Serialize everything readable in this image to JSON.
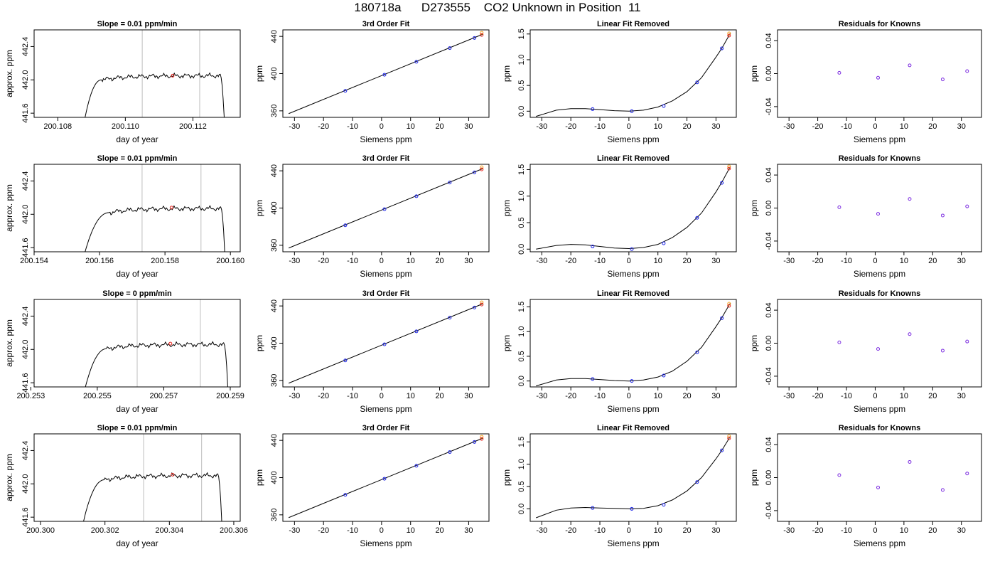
{
  "page_title": "180718a      D273555    CO2 Unknown in Position  11",
  "chart_data": [
    {
      "type": "line",
      "title": "Slope =  0.01  ppm/min",
      "xlabel": "day of year",
      "ylabel": "approx. ppm",
      "xlim": [
        200.1073,
        200.1134
      ],
      "ylim": [
        441.55,
        442.6
      ],
      "xticks": [
        200.108,
        200.11,
        200.112
      ],
      "xtick_labels": [
        "200.108",
        "200.110",
        "200.112"
      ],
      "yticks": [
        441.6,
        442.0,
        442.4
      ],
      "ytick_labels": [
        "441.6",
        "442.0",
        "442.4"
      ],
      "vlines": [
        200.1105,
        200.1122
      ],
      "trace": {
        "t_start": 200.1087,
        "t_rise_end": 200.1093,
        "t_plateau_end": 200.1128,
        "t_end": 200.11295,
        "level": 442.05,
        "low": 441.3
      },
      "marker": {
        "x": 200.1114,
        "y": 442.05
      }
    },
    {
      "type": "scatter",
      "title": "3rd Order Fit",
      "xlabel": "Siemens ppm",
      "ylabel": "ppm",
      "xlim": [
        -34,
        37
      ],
      "ylim": [
        353,
        447
      ],
      "xticks": [
        -30,
        -20,
        -10,
        0,
        10,
        20,
        30
      ],
      "yticks": [
        360,
        400,
        440
      ],
      "points": [
        {
          "x": -12.5,
          "y": 381.5
        },
        {
          "x": 1,
          "y": 398.8
        },
        {
          "x": 12,
          "y": 412.7
        },
        {
          "x": 23.5,
          "y": 427.4
        },
        {
          "x": 32,
          "y": 438.3
        }
      ],
      "unknown": {
        "x": 34.5,
        "y": 441.6
      },
      "fit_line": {
        "x": [
          -32,
          35
        ],
        "y": [
          357,
          442.5
        ]
      }
    },
    {
      "type": "scatter",
      "title": "Linear Fit Removed",
      "xlabel": "Siemens ppm",
      "ylabel": "ppm",
      "xlim": [
        -34,
        37
      ],
      "ylim": [
        -0.12,
        1.58
      ],
      "xticks": [
        -30,
        -20,
        -10,
        0,
        10,
        20,
        30
      ],
      "yticks": [
        0,
        0.5,
        1,
        1.5
      ],
      "ytick_labels": [
        "0.0",
        "0.5",
        "1.0",
        "1.5"
      ],
      "points": [
        {
          "x": -12.5,
          "y": 0.04
        },
        {
          "x": 1,
          "y": 0.0
        },
        {
          "x": 12,
          "y": 0.1
        },
        {
          "x": 23.5,
          "y": 0.56
        },
        {
          "x": 32,
          "y": 1.22
        }
      ],
      "unknown": {
        "x": 34.5,
        "y": 1.47
      },
      "curve": {
        "x": [
          -32,
          -25,
          -20,
          -15,
          -10,
          -5,
          0,
          5,
          10,
          15,
          20,
          25,
          30,
          32,
          34,
          35
        ],
        "y": [
          -0.1,
          0.02,
          0.05,
          0.05,
          0.03,
          0.01,
          0.0,
          0.02,
          0.08,
          0.2,
          0.38,
          0.65,
          1.05,
          1.22,
          1.42,
          1.52
        ]
      }
    },
    {
      "type": "scatter",
      "title": "Residuals for Knowns",
      "xlabel": "Siemens ppm",
      "ylabel": "ppm",
      "xlim": [
        -34,
        37
      ],
      "ylim": [
        -0.053,
        0.053
      ],
      "xticks": [
        -30,
        -20,
        -10,
        0,
        10,
        20,
        30
      ],
      "yticks": [
        -0.04,
        0,
        0.04
      ],
      "ytick_labels": [
        "-0.04",
        "0.00",
        "0.04"
      ],
      "points": [
        {
          "x": -12.5,
          "y": 0.001
        },
        {
          "x": 1,
          "y": -0.005
        },
        {
          "x": 12,
          "y": 0.01
        },
        {
          "x": 23.5,
          "y": -0.007
        },
        {
          "x": 32,
          "y": 0.003
        }
      ]
    },
    {
      "type": "line",
      "title": "Slope =  0.01  ppm/min",
      "xlabel": "day of year",
      "ylabel": "approx. ppm",
      "xlim": [
        200.154,
        200.1603
      ],
      "ylim": [
        441.55,
        442.6
      ],
      "xticks": [
        200.154,
        200.156,
        200.158,
        200.16
      ],
      "xtick_labels": [
        "200.154",
        "200.156",
        "200.158",
        "200.160"
      ],
      "yticks": [
        441.6,
        442.0,
        442.4
      ],
      "ytick_labels": [
        "441.6",
        "442.0",
        "442.4"
      ],
      "vlines": [
        200.1573,
        200.1591
      ],
      "trace": {
        "t_start": 200.1554,
        "t_rise_end": 200.1563,
        "t_plateau_end": 200.1597,
        "t_end": 200.15985,
        "level": 442.07,
        "low": 441.3
      },
      "marker": {
        "x": 200.1582,
        "y": 442.08
      }
    },
    {
      "type": "scatter",
      "title": "3rd Order Fit",
      "xlabel": "Siemens ppm",
      "ylabel": "ppm",
      "xlim": [
        -34,
        37
      ],
      "ylim": [
        353,
        447
      ],
      "xticks": [
        -30,
        -20,
        -10,
        0,
        10,
        20,
        30
      ],
      "yticks": [
        360,
        400,
        440
      ],
      "points": [
        {
          "x": -12.5,
          "y": 381.5
        },
        {
          "x": 1,
          "y": 398.8
        },
        {
          "x": 12,
          "y": 412.7
        },
        {
          "x": 23.5,
          "y": 427.4
        },
        {
          "x": 32,
          "y": 438.3
        }
      ],
      "unknown": {
        "x": 34.5,
        "y": 441.6
      },
      "fit_line": {
        "x": [
          -32,
          35
        ],
        "y": [
          357,
          442.5
        ]
      }
    },
    {
      "type": "scatter",
      "title": "Linear Fit Removed",
      "xlabel": "Siemens ppm",
      "ylabel": "ppm",
      "xlim": [
        -34,
        37
      ],
      "ylim": [
        -0.05,
        1.6
      ],
      "xticks": [
        -30,
        -20,
        -10,
        0,
        10,
        20,
        30
      ],
      "yticks": [
        0,
        0.5,
        1,
        1.5
      ],
      "ytick_labels": [
        "0.0",
        "0.5",
        "1.0",
        "1.5"
      ],
      "points": [
        {
          "x": -12.5,
          "y": 0.05
        },
        {
          "x": 1,
          "y": 0.0
        },
        {
          "x": 12,
          "y": 0.11
        },
        {
          "x": 23.5,
          "y": 0.59
        },
        {
          "x": 32,
          "y": 1.25
        }
      ],
      "unknown": {
        "x": 34.5,
        "y": 1.52
      },
      "curve": {
        "x": [
          -32,
          -25,
          -20,
          -15,
          -10,
          -5,
          0,
          5,
          10,
          15,
          20,
          25,
          30,
          32,
          34,
          35
        ],
        "y": [
          0.0,
          0.07,
          0.09,
          0.08,
          0.05,
          0.02,
          0.01,
          0.03,
          0.09,
          0.22,
          0.41,
          0.68,
          1.08,
          1.26,
          1.46,
          1.56
        ]
      }
    },
    {
      "type": "scatter",
      "title": "Residuals for Knowns",
      "xlabel": "Siemens ppm",
      "ylabel": "ppm",
      "xlim": [
        -34,
        37
      ],
      "ylim": [
        -0.053,
        0.053
      ],
      "xticks": [
        -30,
        -20,
        -10,
        0,
        10,
        20,
        30
      ],
      "yticks": [
        -0.04,
        0,
        0.04
      ],
      "ytick_labels": [
        "-0.04",
        "0.00",
        "0.04"
      ],
      "points": [
        {
          "x": -12.5,
          "y": 0.001
        },
        {
          "x": 1,
          "y": -0.007
        },
        {
          "x": 12,
          "y": 0.011
        },
        {
          "x": 23.5,
          "y": -0.009
        },
        {
          "x": 32,
          "y": 0.002
        }
      ]
    },
    {
      "type": "line",
      "title": "Slope =  0  ppm/min",
      "xlabel": "day of year",
      "ylabel": "approx. ppm",
      "xlim": [
        200.2531,
        200.2593
      ],
      "ylim": [
        441.55,
        442.6
      ],
      "xticks": [
        200.253,
        200.255,
        200.257,
        200.259
      ],
      "xtick_labels": [
        "200.253",
        "200.255",
        "200.257",
        "200.259"
      ],
      "yticks": [
        441.6,
        442.0,
        442.4
      ],
      "ytick_labels": [
        "441.6",
        "442.0",
        "442.4"
      ],
      "vlines": [
        200.2562,
        200.2581
      ],
      "trace": {
        "t_start": 200.2545,
        "t_rise_end": 200.2553,
        "t_plateau_end": 200.2588,
        "t_end": 200.25895,
        "level": 442.06,
        "low": 441.3
      },
      "marker": {
        "x": 200.2572,
        "y": 442.07
      }
    },
    {
      "type": "scatter",
      "title": "3rd Order Fit",
      "xlabel": "Siemens ppm",
      "ylabel": "ppm",
      "xlim": [
        -34,
        37
      ],
      "ylim": [
        353,
        447
      ],
      "xticks": [
        -30,
        -20,
        -10,
        0,
        10,
        20,
        30
      ],
      "yticks": [
        360,
        400,
        440
      ],
      "points": [
        {
          "x": -12.5,
          "y": 381.5
        },
        {
          "x": 1,
          "y": 398.8
        },
        {
          "x": 12,
          "y": 412.7
        },
        {
          "x": 23.5,
          "y": 427.4
        },
        {
          "x": 32,
          "y": 438.3
        }
      ],
      "unknown": {
        "x": 34.5,
        "y": 441.6
      },
      "fit_line": {
        "x": [
          -32,
          35
        ],
        "y": [
          357,
          442.5
        ]
      }
    },
    {
      "type": "scatter",
      "title": "Linear Fit Removed",
      "xlabel": "Siemens ppm",
      "ylabel": "ppm",
      "xlim": [
        -34,
        37
      ],
      "ylim": [
        -0.12,
        1.65
      ],
      "xticks": [
        -30,
        -20,
        -10,
        0,
        10,
        20,
        30
      ],
      "yticks": [
        0,
        0.5,
        1,
        1.5
      ],
      "ytick_labels": [
        "0.0",
        "0.5",
        "1.0",
        "1.5"
      ],
      "points": [
        {
          "x": -12.5,
          "y": 0.04
        },
        {
          "x": 1,
          "y": 0.0
        },
        {
          "x": 12,
          "y": 0.11
        },
        {
          "x": 23.5,
          "y": 0.58
        },
        {
          "x": 32,
          "y": 1.27
        }
      ],
      "unknown": {
        "x": 34.5,
        "y": 1.52
      },
      "curve": {
        "x": [
          -32,
          -25,
          -20,
          -15,
          -10,
          -5,
          0,
          5,
          10,
          15,
          20,
          25,
          30,
          32,
          34,
          35
        ],
        "y": [
          -0.1,
          0.02,
          0.05,
          0.05,
          0.03,
          0.01,
          0.0,
          0.02,
          0.08,
          0.2,
          0.4,
          0.68,
          1.1,
          1.28,
          1.48,
          1.58
        ]
      }
    },
    {
      "type": "scatter",
      "title": "Residuals for Knowns",
      "xlabel": "Siemens ppm",
      "ylabel": "ppm",
      "xlim": [
        -34,
        37
      ],
      "ylim": [
        -0.053,
        0.053
      ],
      "xticks": [
        -30,
        -20,
        -10,
        0,
        10,
        20,
        30
      ],
      "yticks": [
        -0.04,
        0,
        0.04
      ],
      "ytick_labels": [
        "-0.04",
        "0.00",
        "0.04"
      ],
      "points": [
        {
          "x": -12.5,
          "y": 0.001
        },
        {
          "x": 1,
          "y": -0.007
        },
        {
          "x": 12,
          "y": 0.011
        },
        {
          "x": 23.5,
          "y": -0.009
        },
        {
          "x": 32,
          "y": 0.002
        }
      ]
    },
    {
      "type": "line",
      "title": "Slope =  0.01  ppm/min",
      "xlabel": "day of year",
      "ylabel": "approx. ppm",
      "xlim": [
        200.2998,
        200.3062
      ],
      "ylim": [
        441.55,
        442.6
      ],
      "xticks": [
        200.3,
        200.302,
        200.304,
        200.306
      ],
      "xtick_labels": [
        "200.300",
        "200.302",
        "200.304",
        "200.306"
      ],
      "yticks": [
        441.6,
        442.0,
        442.4
      ],
      "ytick_labels": [
        "441.6",
        "442.0",
        "442.4"
      ],
      "vlines": [
        200.3032,
        200.305
      ],
      "trace": {
        "t_start": 200.3012,
        "t_rise_end": 200.302,
        "t_plateau_end": 200.3055,
        "t_end": 200.30565,
        "level": 442.1,
        "low": 441.3
      },
      "marker": {
        "x": 200.3041,
        "y": 442.11
      }
    },
    {
      "type": "scatter",
      "title": "3rd Order Fit",
      "xlabel": "Siemens ppm",
      "ylabel": "ppm",
      "xlim": [
        -34,
        37
      ],
      "ylim": [
        353,
        447
      ],
      "xticks": [
        -30,
        -20,
        -10,
        0,
        10,
        20,
        30
      ],
      "yticks": [
        360,
        400,
        440
      ],
      "points": [
        {
          "x": -12.5,
          "y": 381.5
        },
        {
          "x": 1,
          "y": 398.8
        },
        {
          "x": 12,
          "y": 412.7
        },
        {
          "x": 23.5,
          "y": 427.4
        },
        {
          "x": 32,
          "y": 438.3
        }
      ],
      "unknown": {
        "x": 34.5,
        "y": 441.6
      },
      "fit_line": {
        "x": [
          -32,
          35
        ],
        "y": [
          357,
          442.5
        ]
      }
    },
    {
      "type": "scatter",
      "title": "Linear Fit Removed",
      "xlabel": "Siemens ppm",
      "ylabel": "ppm",
      "xlim": [
        -34,
        37
      ],
      "ylim": [
        -0.28,
        1.68
      ],
      "xticks": [
        -30,
        -20,
        -10,
        0,
        10,
        20,
        30
      ],
      "yticks": [
        0,
        0.5,
        1,
        1.5
      ],
      "ytick_labels": [
        "0.0",
        "0.5",
        "1.0",
        "1.5"
      ],
      "points": [
        {
          "x": -12.5,
          "y": 0.02
        },
        {
          "x": 1,
          "y": 0.0
        },
        {
          "x": 12,
          "y": 0.09
        },
        {
          "x": 23.5,
          "y": 0.6
        },
        {
          "x": 32,
          "y": 1.31
        }
      ],
      "unknown": {
        "x": 34.5,
        "y": 1.58
      },
      "curve": {
        "x": [
          -32,
          -25,
          -20,
          -15,
          -10,
          -5,
          0,
          5,
          10,
          15,
          20,
          25,
          30,
          32,
          34,
          35
        ],
        "y": [
          -0.2,
          -0.03,
          0.02,
          0.03,
          0.02,
          0.01,
          0.0,
          0.01,
          0.07,
          0.2,
          0.4,
          0.7,
          1.12,
          1.31,
          1.52,
          1.63
        ]
      }
    },
    {
      "type": "scatter",
      "title": "Residuals for Knowns",
      "xlabel": "Siemens ppm",
      "ylabel": "ppm",
      "xlim": [
        -34,
        37
      ],
      "ylim": [
        -0.053,
        0.053
      ],
      "xticks": [
        -30,
        -20,
        -10,
        0,
        10,
        20,
        30
      ],
      "yticks": [
        -0.04,
        0,
        0.04
      ],
      "ytick_labels": [
        "-0.04",
        "0.00",
        "0.04"
      ],
      "points": [
        {
          "x": -12.5,
          "y": 0.003
        },
        {
          "x": 1,
          "y": -0.012
        },
        {
          "x": 12,
          "y": 0.019
        },
        {
          "x": 23.5,
          "y": -0.015
        },
        {
          "x": 32,
          "y": 0.005
        }
      ]
    }
  ]
}
